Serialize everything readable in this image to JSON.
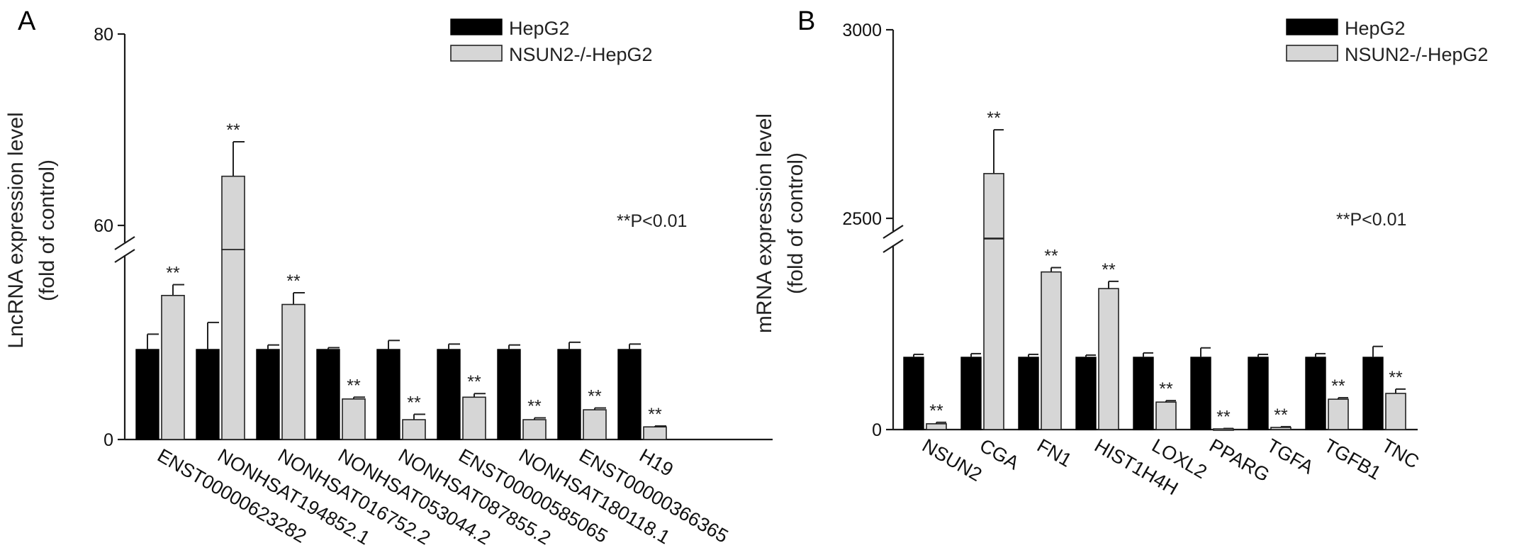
{
  "chart_data": [
    {
      "type": "bar",
      "panel_label": "A",
      "ylabel_lines": [
        "LncRNA expression level",
        "(fold of control)"
      ],
      "categories": [
        "ENST00000623282",
        "NONHSAT194852.1",
        "NONHSAT016752.2",
        "NONHSAT053044.2",
        "NONHSAT087855.2",
        "ENST00000585065",
        "NONHSAT180118.1",
        "ENST00000366365",
        "H19"
      ],
      "series": [
        {
          "name": "HepG2",
          "color": "#000000",
          "values": [
            1,
            1,
            1,
            1,
            1,
            1,
            1,
            1,
            1
          ],
          "errors": [
            0.17,
            0.3,
            0.05,
            0.02,
            0.1,
            0.06,
            0.05,
            0.08,
            0.06
          ]
        },
        {
          "name": "NSUN2-/-HepG2",
          "color": "#d6d6d6",
          "values": [
            1.6,
            66.8,
            1.5,
            0.45,
            0.22,
            0.47,
            0.22,
            0.33,
            0.14
          ],
          "errors": [
            0.12,
            3.2,
            0.13,
            0.02,
            0.06,
            0.04,
            0.02,
            0.02,
            0.01
          ]
        }
      ],
      "significance": [
        "**",
        "**",
        "**",
        "**",
        "**",
        "**",
        "**",
        "**",
        "**"
      ],
      "ytick_labels": [
        "0",
        "60",
        "80"
      ],
      "axis_break": {
        "lower_range": [
          0,
          2
        ],
        "upper_range": [
          60,
          80
        ]
      },
      "annotation": "**P<0.01"
    },
    {
      "type": "bar",
      "panel_label": "B",
      "ylabel_lines": [
        "mRNA expression level",
        "(fold of control)"
      ],
      "categories": [
        "NSUN2",
        "CGA",
        "FN1",
        "HIST1H4H",
        "LOXL2",
        "PPARG",
        "TGFA",
        "TGFB1",
        "TNC"
      ],
      "series": [
        {
          "name": "HepG2",
          "color": "#000000",
          "values": [
            1,
            1,
            1,
            1,
            1,
            1,
            1,
            1,
            1
          ],
          "errors": [
            0.04,
            0.05,
            0.04,
            0.03,
            0.06,
            0.13,
            0.04,
            0.05,
            0.15
          ]
        },
        {
          "name": "NSUN2-/-HepG2",
          "color": "#d6d6d6",
          "values": [
            0.08,
            2655,
            2.18,
            1.95,
            0.38,
            0.01,
            0.03,
            0.42,
            0.5
          ],
          "errors": [
            0.02,
            105,
            0.06,
            0.1,
            0.02,
            0.005,
            0.01,
            0.02,
            0.06
          ]
        }
      ],
      "significance": [
        "**",
        "**",
        "**",
        "**",
        "**",
        "**",
        "**",
        "**",
        "**"
      ],
      "ytick_labels": [
        "0",
        "2500",
        "3000"
      ],
      "axis_break": {
        "lower_range": [
          0,
          2.5
        ],
        "upper_range": [
          2500,
          3000
        ]
      },
      "annotation": "**P<0.01"
    }
  ]
}
